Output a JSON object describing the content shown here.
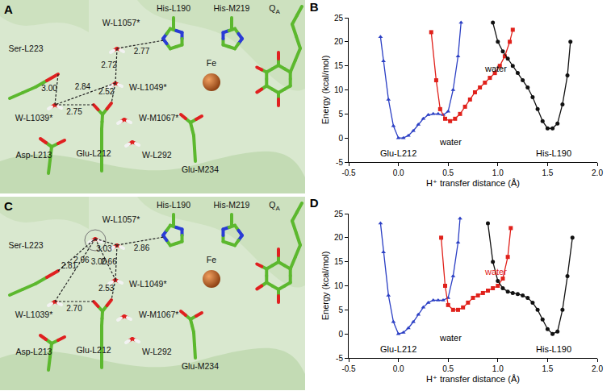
{
  "structures": [
    {
      "panel": "A",
      "labels": [
        "His-L190",
        "His-M219",
        "Fe",
        "W-L1057*",
        "Ser-L223",
        "W-L1049*",
        "W-L1039*",
        "Asp-L213",
        "Glu-L212",
        "W-M1067*",
        "W-L292",
        "Glu-M234"
      ],
      "qa": {
        "text": "Q",
        "subscript": "A"
      },
      "distances": [
        3.0,
        2.77,
        2.84,
        2.72,
        2.75,
        2.52
      ]
    },
    {
      "panel": "C",
      "labels": [
        "His-L190",
        "His-M219",
        "Fe",
        "W-L1057*",
        "Ser-L223",
        "W-L1049*",
        "W-L1039*",
        "Asp-L213",
        "Glu-L212",
        "W-M1067*",
        "W-L292",
        "Glu-M234"
      ],
      "qa": {
        "text": "Q",
        "subscript": "A"
      },
      "distances": [
        2.96,
        2.81,
        3.0,
        3.03,
        2.86,
        2.66,
        2.7,
        2.53
      ]
    }
  ],
  "chart_data": [
    {
      "type": "line",
      "title": "B",
      "x_label": "H⁺ transfer distance (Å)",
      "y_label": "Energy (kcal/mol)",
      "xlim": [
        -0.5,
        2.0
      ],
      "xticks": [
        -0.5,
        {
          "value": 0,
          "label": "0.0"
        },
        0.5,
        {
          "value": 1,
          "label": "1.0"
        },
        1.5,
        {
          "value": 2,
          "label": "2.0"
        }
      ],
      "ylim": [
        -5,
        25
      ],
      "yticks": [
        -5,
        0,
        5,
        10,
        15,
        20,
        25
      ],
      "grid": false,
      "series": [
        {
          "color": "#2b3fc4",
          "marker": "triangle-up",
          "x": [
            -0.18,
            -0.15,
            -0.1,
            -0.05,
            0,
            0.05,
            0.1,
            0.15,
            0.2,
            0.25,
            0.3,
            0.35,
            0.4,
            0.45,
            0.5,
            0.55,
            0.6,
            0.63
          ],
          "values": [
            21,
            16,
            8,
            2.5,
            0,
            0,
            0.5,
            1.5,
            2.8,
            4,
            4.8,
            5,
            5,
            4.8,
            5.5,
            10,
            17,
            24
          ]
        },
        {
          "color": "#e0211b",
          "marker": "square",
          "x": [
            0.33,
            0.38,
            0.42,
            0.47,
            0.52,
            0.57,
            0.62,
            0.67,
            0.72,
            0.77,
            0.82,
            0.87,
            0.92,
            0.97,
            1.02,
            1.07,
            1.12,
            1.15
          ],
          "values": [
            22,
            12,
            6,
            4,
            3.5,
            4,
            5,
            6.5,
            8,
            9.5,
            10.5,
            11.5,
            12.5,
            13.5,
            15,
            17,
            20,
            22.5
          ]
        },
        {
          "color": "#111111",
          "marker": "circle",
          "x": [
            0.95,
            1.0,
            1.05,
            1.1,
            1.15,
            1.2,
            1.25,
            1.3,
            1.35,
            1.4,
            1.45,
            1.5,
            1.55,
            1.6,
            1.65,
            1.7,
            1.73
          ],
          "values": [
            24,
            20,
            18,
            16.5,
            15,
            13.5,
            12,
            10.5,
            8.5,
            6,
            3.5,
            2,
            2,
            3,
            7,
            13,
            20
          ]
        }
      ],
      "annotations": [
        {
          "text": "Glu-L212",
          "x": 0.0,
          "y": -3.2,
          "color": "#000000"
        },
        {
          "text": "water",
          "x": 0.52,
          "y": -0.8,
          "color": "#000000"
        },
        {
          "text": "water",
          "x": 0.98,
          "y": 14.5,
          "color": "#000000"
        },
        {
          "text": "His-L190",
          "x": 1.56,
          "y": -3.2,
          "color": "#000000"
        }
      ]
    },
    {
      "type": "line",
      "title": "D",
      "x_label": "H⁺ transfer distance (Å)",
      "y_label": "Energy (kcal/mol)",
      "xlim": [
        -0.5,
        2.0
      ],
      "xticks": [
        -0.5,
        {
          "value": 0,
          "label": "0.0"
        },
        0.5,
        {
          "value": 1,
          "label": "1.0"
        },
        1.5,
        {
          "value": 2,
          "label": "2.0"
        }
      ],
      "ylim": [
        -5,
        25
      ],
      "yticks": [
        -5,
        0,
        5,
        10,
        15,
        20,
        25
      ],
      "grid": false,
      "series": [
        {
          "color": "#2b3fc4",
          "marker": "triangle-up",
          "x": [
            -0.18,
            -0.15,
            -0.1,
            -0.05,
            0,
            0.05,
            0.1,
            0.15,
            0.2,
            0.25,
            0.3,
            0.35,
            0.4,
            0.45,
            0.5,
            0.55,
            0.6,
            0.62
          ],
          "values": [
            23,
            17,
            8,
            2.5,
            0,
            0.3,
            1.2,
            2.5,
            4,
            5.5,
            6.5,
            7,
            7,
            7,
            7.5,
            12,
            19,
            24
          ]
        },
        {
          "color": "#e0211b",
          "marker": "square",
          "x": [
            0.43,
            0.47,
            0.5,
            0.55,
            0.6,
            0.65,
            0.7,
            0.75,
            0.8,
            0.85,
            0.9,
            0.95,
            1.0,
            1.05,
            1.1,
            1.13
          ],
          "values": [
            20,
            10,
            6,
            5,
            5,
            5.5,
            6.5,
            7.5,
            8,
            8.5,
            9,
            9.5,
            10,
            11.5,
            16,
            22
          ]
        },
        {
          "color": "#111111",
          "marker": "circle",
          "x": [
            0.9,
            0.95,
            1.0,
            1.05,
            1.1,
            1.15,
            1.2,
            1.25,
            1.3,
            1.35,
            1.4,
            1.45,
            1.5,
            1.55,
            1.6,
            1.65,
            1.7,
            1.75
          ],
          "values": [
            23,
            15,
            11,
            9.5,
            8.8,
            8.5,
            8.3,
            8,
            7.5,
            6.5,
            5,
            3,
            1,
            0,
            0.5,
            5,
            12,
            20
          ]
        }
      ],
      "annotations": [
        {
          "text": "Glu-L212",
          "x": 0.0,
          "y": -3.2,
          "color": "#000000"
        },
        {
          "text": "water",
          "x": 0.52,
          "y": -0.8,
          "color": "#000000"
        },
        {
          "text": "water",
          "x": 0.98,
          "y": 13,
          "color": "#e0211b"
        },
        {
          "text": "His-L190",
          "x": 1.56,
          "y": -3.2,
          "color": "#000000"
        }
      ]
    }
  ]
}
